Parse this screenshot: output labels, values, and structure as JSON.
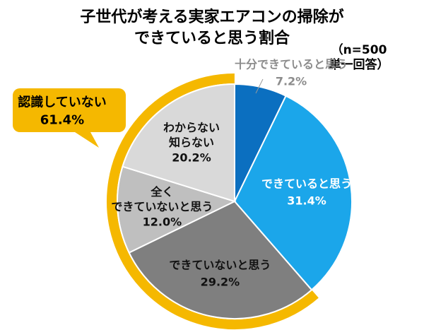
{
  "chart_data": {
    "type": "pie",
    "title": [
      "子世代が考える実家エアコンの掃除が",
      "できていると思う割合"
    ],
    "subtitle": "（n=500 単一回答）",
    "categories": [
      "十分できていると思う",
      "できていると思う",
      "できていないと思う",
      "全く\nできていないと思う",
      "わからない\n知らない"
    ],
    "values": [
      7.2,
      31.4,
      29.2,
      12.0,
      20.2
    ],
    "value_labels": [
      "7.2%",
      "31.4%",
      "29.2%",
      "12.0%",
      "20.2%"
    ],
    "colors": [
      "#0b6fc0",
      "#1ba6ea",
      "#7f7f7f",
      "#bfbfbf",
      "#d9d9d9"
    ],
    "label_colors": [
      "#8c8c8c",
      "#ffffff",
      "#111111",
      "#111111",
      "#111111"
    ],
    "annotation": {
      "text": "認識していない",
      "value": 61.4,
      "value_label": "61.4%",
      "color": "#f5b800"
    }
  }
}
